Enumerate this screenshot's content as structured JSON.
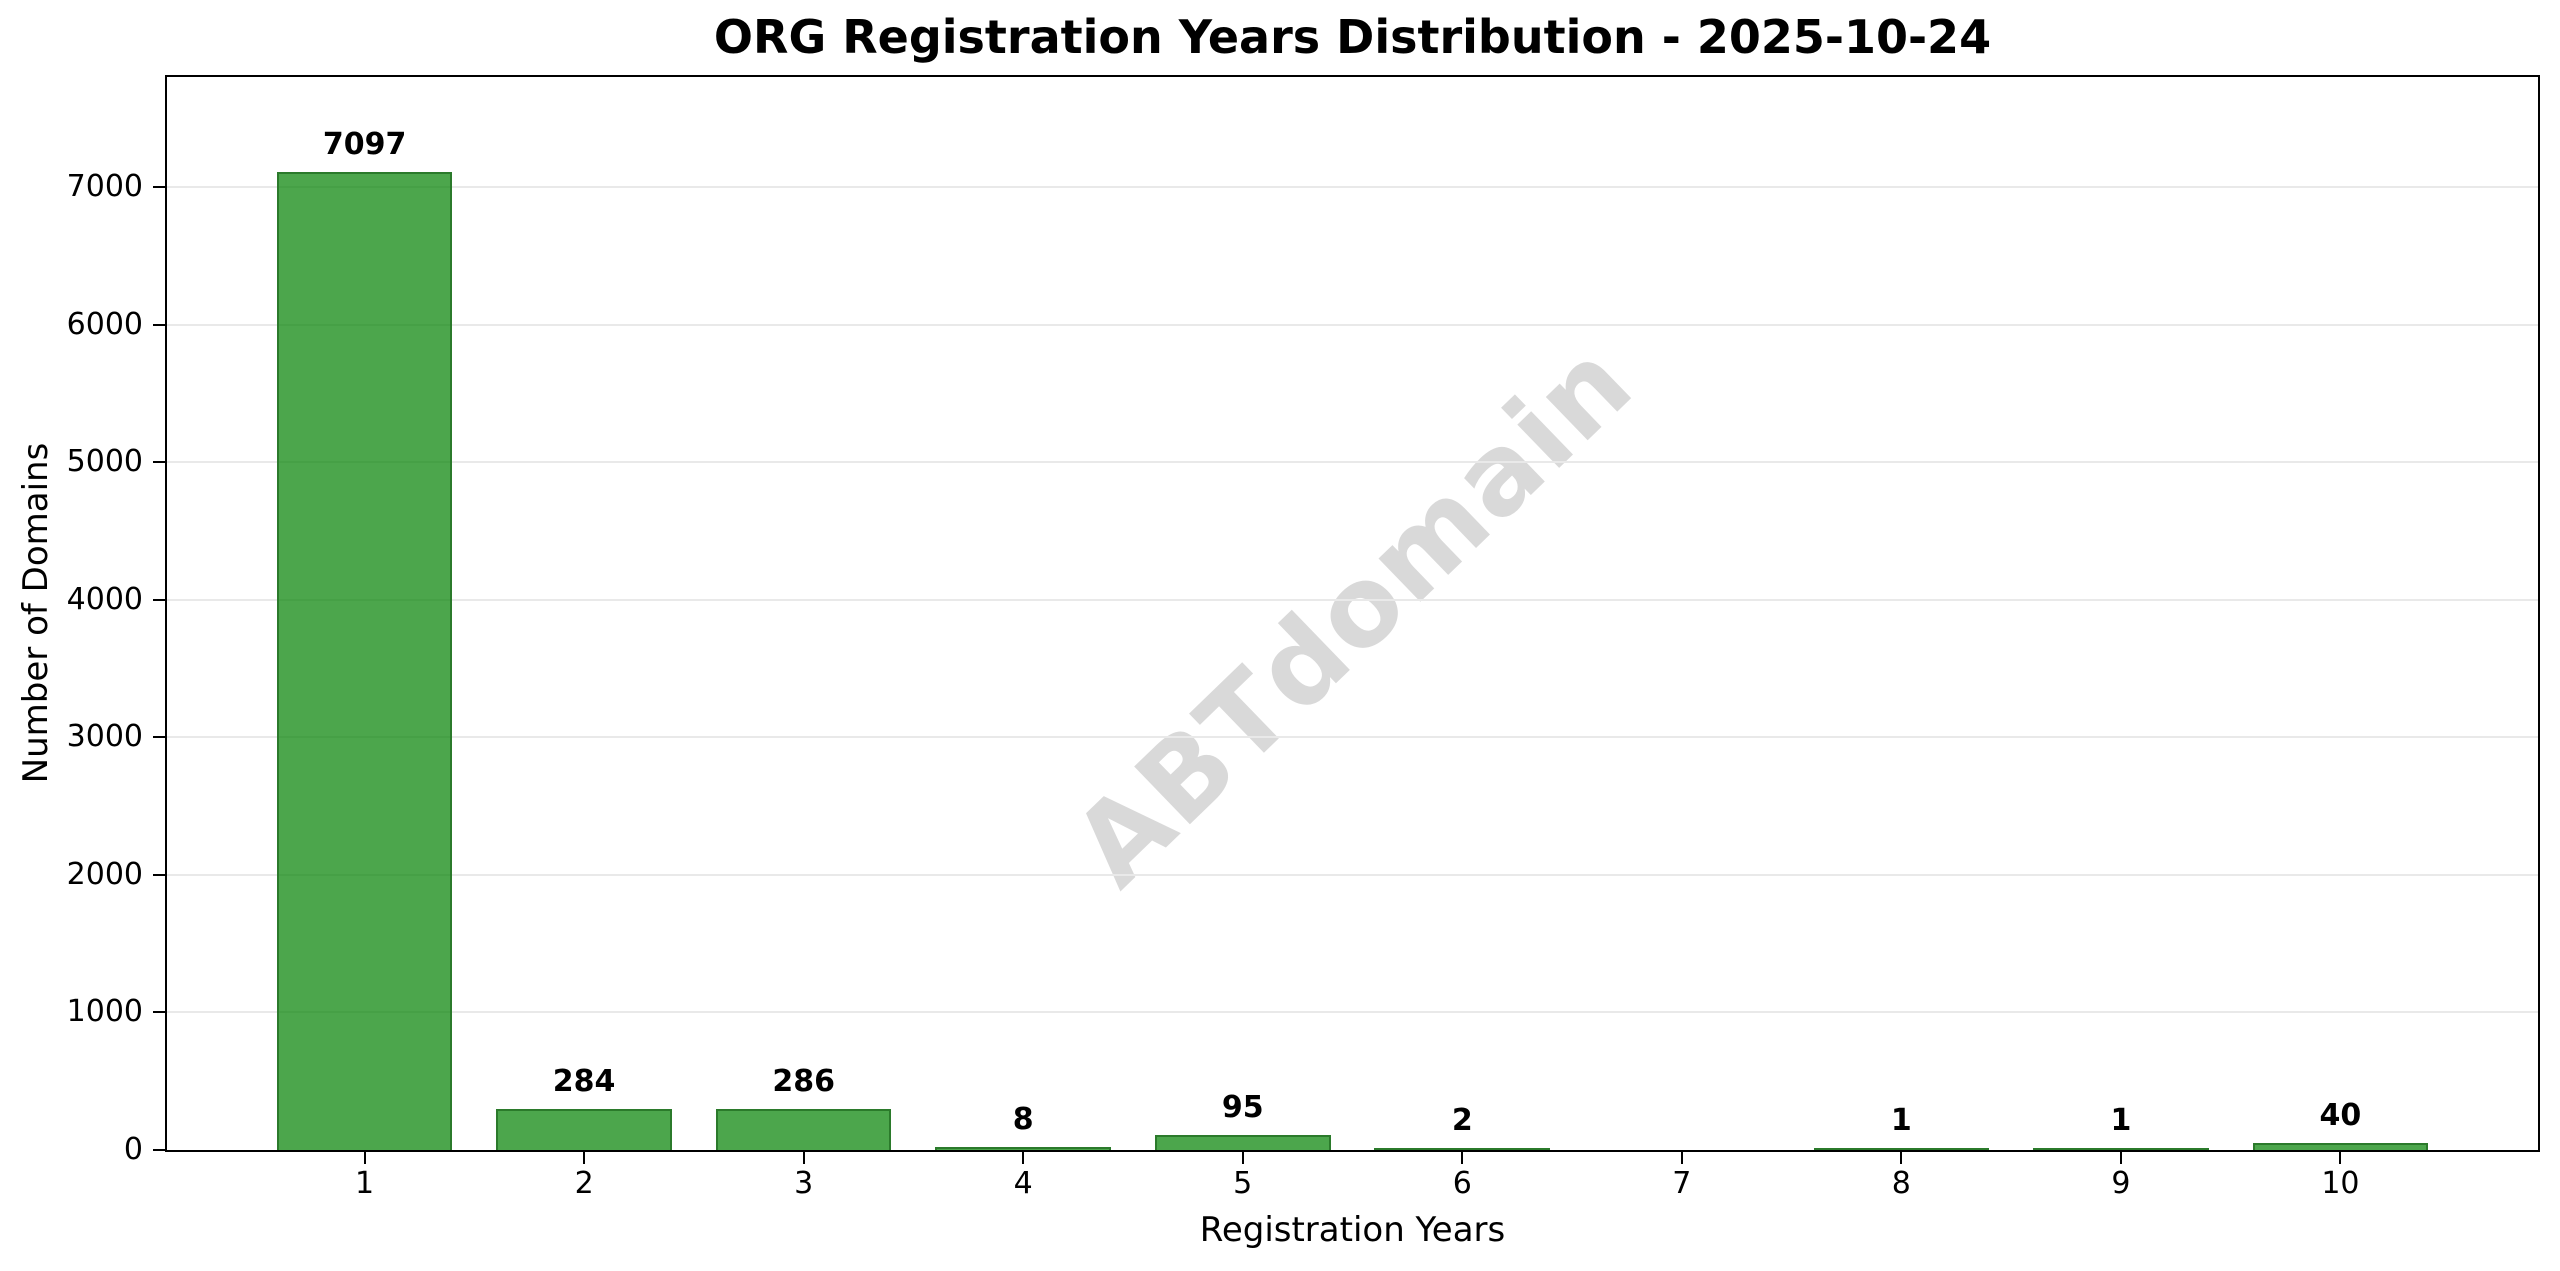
{
  "title": "ORG Registration Years Distribution - 2025-10-24",
  "watermark": {
    "text": "ABTdomain",
    "color": "#d9d9d9"
  },
  "chart_data": {
    "type": "bar",
    "title": "ORG Registration Years Distribution - 2025-10-24",
    "xlabel": "Registration Years",
    "ylabel": "Number of Domains",
    "categories": [
      "1",
      "2",
      "3",
      "4",
      "5",
      "6",
      "7",
      "8",
      "9",
      "10"
    ],
    "values": [
      7097,
      284,
      286,
      8,
      95,
      2,
      0,
      1,
      1,
      40
    ],
    "bar_labels": [
      "7097",
      "284",
      "286",
      "8",
      "95",
      "2",
      "",
      "1",
      "1",
      "40"
    ],
    "yticks": [
      0,
      1000,
      2000,
      3000,
      4000,
      5000,
      6000,
      7000
    ],
    "ytick_labels": [
      "0",
      "1000",
      "2000",
      "3000",
      "4000",
      "5000",
      "6000",
      "7000"
    ],
    "ylim": [
      0,
      7800
    ],
    "xlim": [
      0.1,
      10.9
    ],
    "bar_width_units": 0.8,
    "grid": true,
    "legend": "none",
    "bar_fill_color": "rgba(0,128,0,0.7)",
    "bar_edge_color": "#2b7a2b",
    "grid_color": "#e9e9e9",
    "text_color": "#000000",
    "background_color": "#ffffff"
  }
}
